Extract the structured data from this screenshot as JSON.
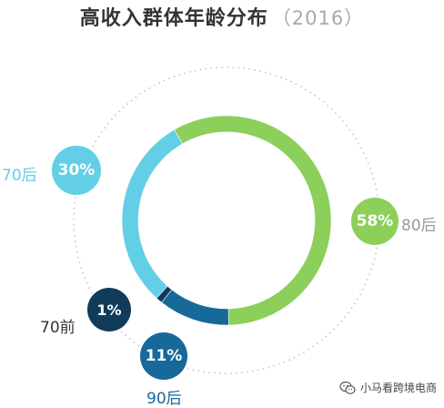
{
  "title": {
    "main": "高收入群体年龄分布",
    "year": "（2016）"
  },
  "chart_data": {
    "type": "pie",
    "title": "高收入群体年龄分布（2016）",
    "categories": [
      "80后",
      "90后",
      "70前",
      "70后"
    ],
    "values": [
      58,
      11,
      1,
      30
    ],
    "unit": "%",
    "value_labels": [
      "58%",
      "11%",
      "1%",
      "30%"
    ],
    "colors": [
      "#8ccf5a",
      "#17699a",
      "#103b5a",
      "#62cfe6"
    ],
    "label_colors": [
      "#9a9a9a",
      "#17699a",
      "#333333",
      "#62cfe6"
    ],
    "legend": "none"
  },
  "watermark": {
    "text": "小马看跨境电商",
    "icon": "wechat-icon"
  }
}
